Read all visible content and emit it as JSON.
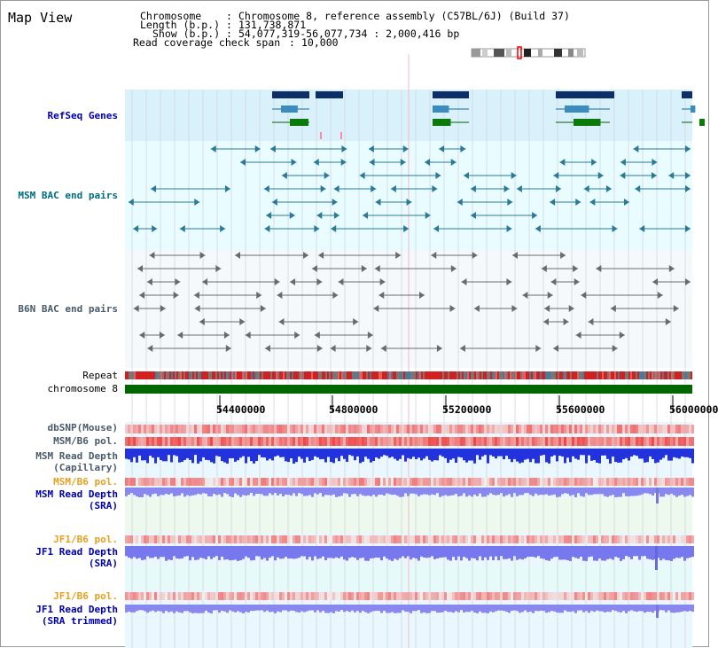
{
  "title": "Map View",
  "header": {
    "chrom_label": "Chromosome",
    "chrom_value": "Chromosome 8, reference assembly (C57BL/6J) (Build 37)",
    "length_label": "Length (b.p.)",
    "length_value": "131,738,871",
    "show_label": "Show (b.p.)",
    "show_value": "54,077,319-56,077,734 : 2,000,416 bp",
    "span_label": "Read coverage check span",
    "span_value": "10,000"
  },
  "tracks": {
    "refseq": "RefSeq Genes",
    "msm_bac": "MSM BAC end pairs",
    "b6n_bac": "B6N BAC end pairs",
    "repeat": "Repeat",
    "chromosome": "chromosome 8",
    "dbsnp": "dbSNP(Mouse)",
    "msm_b6_pol_1": "MSM/B6 pol.",
    "msm_depth_cap_1": "MSM Read Depth",
    "msm_depth_cap_2": "(Capillary)",
    "msm_b6_pol_2": "MSM/B6 pol.",
    "msm_depth_sra_1": "MSM Read Depth",
    "msm_depth_sra_2": "(SRA)",
    "jf1_b6_pol_1": "JF1/B6 pol.",
    "jf1_depth_sra_1": "JF1 Read Depth",
    "jf1_depth_sra_2": "(SRA)",
    "jf1_b6_pol_2": "JF1/B6 pol.",
    "jf1_depth_trim_1": "JF1 Read Depth",
    "jf1_depth_trim_2": "(SRA trimmed)"
  },
  "axis": {
    "ticks": [
      "54400000",
      "54800000",
      "55200000",
      "55600000",
      "56000000"
    ]
  },
  "colors": {
    "label_blue": "#0000aa",
    "label_teal": "#006c80",
    "label_slate": "#4a5a6a",
    "label_orange": "#e6a020",
    "refseq_bg": "#d8f0fb",
    "bac_bg": "#e8fbff",
    "depth_bg": "#e8fbe8",
    "chrom_green": "#006600"
  }
}
